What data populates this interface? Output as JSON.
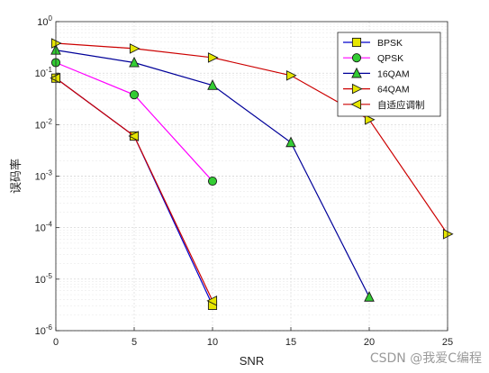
{
  "watermark": "CSDN @我爱C编程",
  "chart_data": {
    "type": "line",
    "title": "",
    "xlabel": "SNR",
    "ylabel": "误码率",
    "xlim": [
      0,
      25
    ],
    "ylim": [
      1e-06,
      1
    ],
    "yscale": "log",
    "grid": true,
    "legend_position": "top-right",
    "x_ticks": [
      0,
      5,
      10,
      15,
      20,
      25
    ],
    "y_ticks": [
      {
        "value": 1,
        "base": "10",
        "exp": "0"
      },
      {
        "value": 0.1,
        "base": "10",
        "exp": "-1"
      },
      {
        "value": 0.01,
        "base": "10",
        "exp": "-2"
      },
      {
        "value": 0.001,
        "base": "10",
        "exp": "-3"
      },
      {
        "value": 0.0001,
        "base": "10",
        "exp": "-4"
      },
      {
        "value": 1e-05,
        "base": "10",
        "exp": "-5"
      },
      {
        "value": 1e-06,
        "base": "10",
        "exp": "-6"
      }
    ],
    "series": [
      {
        "name": "BPSK",
        "line_color": "#0000cc",
        "marker": "square",
        "marker_fill": "#e6e600",
        "x": [
          0,
          5,
          10
        ],
        "y": [
          0.08,
          0.006,
          3.1e-06
        ]
      },
      {
        "name": "QPSK",
        "line_color": "#ff00ff",
        "marker": "circle",
        "marker_fill": "#33cc33",
        "x": [
          0,
          5,
          10
        ],
        "y": [
          0.16,
          0.038,
          0.0008
        ]
      },
      {
        "name": "16QAM",
        "line_color": "#000099",
        "marker": "triangle-up",
        "marker_fill": "#33cc33",
        "x": [
          0,
          5,
          10,
          15,
          20
        ],
        "y": [
          0.28,
          0.16,
          0.058,
          0.0045,
          4.5e-06
        ]
      },
      {
        "name": "64QAM",
        "line_color": "#cc0000",
        "marker": "triangle-right",
        "marker_fill": "#e6e600",
        "x": [
          0,
          5,
          10,
          15,
          20,
          25
        ],
        "y": [
          0.38,
          0.3,
          0.2,
          0.09,
          0.0125,
          7.5e-05
        ]
      },
      {
        "name": "自适应调制",
        "line_color": "#cc0000",
        "marker": "triangle-left",
        "marker_fill": "#e6e600",
        "x": [
          0,
          5,
          10
        ],
        "y": [
          0.08,
          0.006,
          3.8e-06
        ]
      }
    ]
  }
}
